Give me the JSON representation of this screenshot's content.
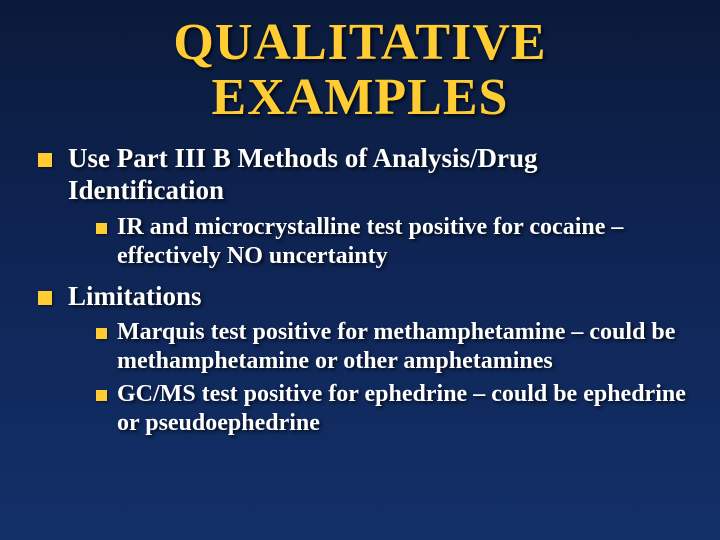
{
  "slide": {
    "type": "presentation-slide",
    "background": {
      "gradient_top": "#0a1a3a",
      "gradient_mid": "#0f2556",
      "gradient_bottom": "#123068"
    },
    "title": {
      "line1": "QUALITATIVE",
      "line2": "EXAMPLES",
      "color": "#ffcc33",
      "fontsize": 52,
      "font_weight": "bold",
      "font_family": "Times New Roman"
    },
    "bullet_color": "#ffcc33",
    "text_color": "#ffffff",
    "shadow_color": "#000000",
    "items": [
      {
        "text": "Use Part III B Methods of Analysis/Drug Identification",
        "fontsize": 27,
        "children": [
          {
            "text": "IR and microcrystalline test positive for cocaine – effectively NO uncertainty",
            "fontsize": 24
          }
        ]
      },
      {
        "text": "Limitations",
        "fontsize": 27,
        "children": [
          {
            "text": "Marquis test positive  for methamphetamine – could be methamphetamine or other amphetamines",
            "fontsize": 24
          },
          {
            "text": "GC/MS test positive for ephedrine – could be ephedrine or pseudoephedrine",
            "fontsize": 24
          }
        ]
      }
    ]
  }
}
